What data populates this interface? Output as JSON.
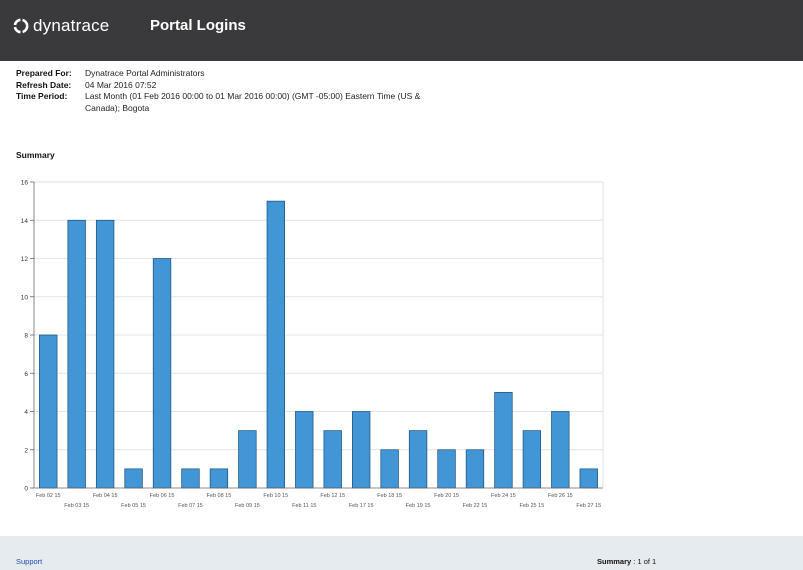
{
  "header": {
    "logo_text": "dynatrace",
    "title": "Portal Logins",
    "background": "#3a3a3c"
  },
  "meta": {
    "prepared_for_label": "Prepared For:",
    "prepared_for_value": "Dynatrace Portal Administrators",
    "refresh_date_label": "Refresh Date:",
    "refresh_date_value": "04 Mar 2016 07:52",
    "time_period_label": "Time Period:",
    "time_period_value": "Last Month  (01 Feb 2016 00:00 to 01 Mar 2016 00:00)  (GMT -05:00) Eastern Time (US & Canada); Bogota"
  },
  "section": {
    "title": "Summary"
  },
  "chart_data": {
    "type": "bar",
    "categories": [
      "Feb 02 15",
      "Feb 03 15",
      "Feb 04 15",
      "Feb 05 15",
      "Feb 06 15",
      "Feb 07 15",
      "Feb 08 15",
      "Feb 09 15",
      "Feb 10 15",
      "Feb 11 15",
      "Feb 12 15",
      "Feb 17 15",
      "Feb 18 15",
      "Feb 19 15",
      "Feb 20 15",
      "Feb 22 15",
      "Feb 24 15",
      "Feb 25 15",
      "Feb 26 15",
      "Feb 27 15"
    ],
    "values": [
      8,
      14,
      14,
      1,
      12,
      1,
      1,
      3,
      15,
      4,
      3,
      4,
      2,
      3,
      2,
      2,
      5,
      3,
      4,
      1
    ],
    "title": "",
    "xlabel": "",
    "ylabel": "",
    "ylim": [
      0,
      16
    ],
    "yticks": [
      0,
      2,
      4,
      6,
      8,
      10,
      12,
      14,
      16
    ],
    "grid": true,
    "bar_color": "#4296d6",
    "bar_edge_color": "#1b4f7a"
  },
  "footer": {
    "support_label": "Support",
    "pager_label": "Summary",
    "pager_value": " : 1 of 1"
  }
}
